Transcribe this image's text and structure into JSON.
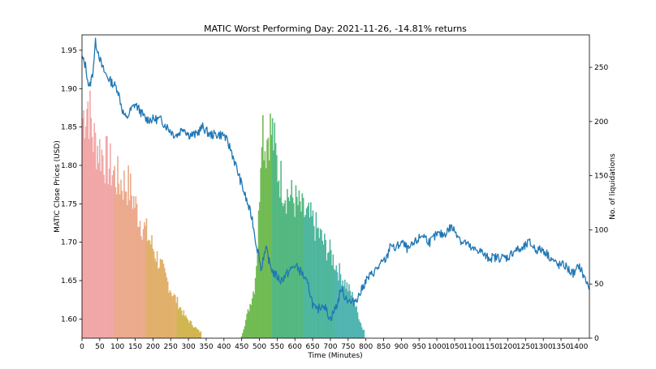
{
  "chart_data": {
    "type": "bar+line",
    "title": "MATIC Worst Performing Day: 2021-11-26, -14.81% returns",
    "xlabel": "Time (Minutes)",
    "ylabel_left": "MATIC Close Prices (USD)",
    "ylabel_right": "No. of liquidations",
    "xlim": [
      0,
      1430
    ],
    "ylim_left": [
      1.575,
      1.97
    ],
    "ylim_right": [
      0,
      280
    ],
    "x_ticks": [
      0,
      50,
      100,
      150,
      200,
      250,
      300,
      350,
      400,
      450,
      500,
      550,
      600,
      650,
      700,
      750,
      800,
      850,
      900,
      950,
      1000,
      1050,
      1100,
      1150,
      1200,
      1250,
      1300,
      1350,
      1400
    ],
    "y_left_ticks": [
      1.6,
      1.65,
      1.7,
      1.75,
      1.8,
      1.85,
      1.9,
      1.95
    ],
    "y_left_tick_labels": [
      "1.60",
      "1.65",
      "1.70",
      "1.75",
      "1.80",
      "1.85",
      "1.90",
      "1.95"
    ],
    "y_right_ticks": [
      0,
      50,
      100,
      150,
      200,
      250
    ],
    "price_series": {
      "name": "MATIC close price",
      "color": "#1f77b4",
      "x": [
        0,
        10,
        20,
        30,
        38,
        45,
        55,
        65,
        80,
        100,
        115,
        125,
        135,
        150,
        165,
        180,
        200,
        220,
        240,
        260,
        270,
        285,
        300,
        320,
        340,
        360,
        380,
        400,
        420,
        440,
        460,
        480,
        490,
        500,
        505,
        510,
        520,
        530,
        540,
        560,
        580,
        600,
        620,
        640,
        650,
        660,
        680,
        700,
        720,
        730,
        740,
        760,
        780,
        800,
        820,
        840,
        860,
        870,
        880,
        900,
        920,
        940,
        960,
        980,
        1000,
        1020,
        1040,
        1060,
        1070,
        1080,
        1100,
        1120,
        1140,
        1160,
        1180,
        1200,
        1220,
        1240,
        1260,
        1280,
        1300,
        1320,
        1340,
        1360,
        1380,
        1390,
        1400,
        1410,
        1420,
        1430
      ],
      "values": [
        1.94,
        1.93,
        1.9,
        1.92,
        1.96,
        1.95,
        1.93,
        1.92,
        1.91,
        1.9,
        1.87,
        1.86,
        1.87,
        1.88,
        1.87,
        1.86,
        1.86,
        1.86,
        1.85,
        1.84,
        1.84,
        1.85,
        1.84,
        1.84,
        1.85,
        1.84,
        1.84,
        1.84,
        1.82,
        1.79,
        1.76,
        1.73,
        1.7,
        1.68,
        1.66,
        1.68,
        1.69,
        1.67,
        1.66,
        1.65,
        1.66,
        1.67,
        1.66,
        1.64,
        1.62,
        1.61,
        1.62,
        1.6,
        1.62,
        1.64,
        1.63,
        1.62,
        1.63,
        1.65,
        1.66,
        1.67,
        1.68,
        1.7,
        1.69,
        1.7,
        1.69,
        1.7,
        1.71,
        1.7,
        1.71,
        1.71,
        1.72,
        1.71,
        1.7,
        1.7,
        1.69,
        1.69,
        1.68,
        1.68,
        1.68,
        1.68,
        1.69,
        1.69,
        1.7,
        1.69,
        1.69,
        1.68,
        1.67,
        1.67,
        1.66,
        1.66,
        1.67,
        1.66,
        1.65,
        1.64
      ]
    },
    "liquidation_bars": {
      "name": "No. of liquidations",
      "segments": [
        {
          "x_start": 0,
          "x_end": 335,
          "points": [
            [
              0,
              210
            ],
            [
              15,
              225
            ],
            [
              30,
              190
            ],
            [
              100,
              150
            ],
            [
              130,
              145
            ],
            [
              160,
              115
            ],
            [
              200,
              85
            ],
            [
              250,
              45
            ],
            [
              290,
              20
            ],
            [
              330,
              6
            ]
          ]
        },
        {
          "x_start": 448,
          "x_end": 795,
          "points": [
            [
              448,
              2
            ],
            [
              470,
              30
            ],
            [
              485,
              50
            ],
            [
              495,
              100
            ],
            [
              505,
              215
            ],
            [
              515,
              180
            ],
            [
              525,
              200
            ],
            [
              535,
              195
            ],
            [
              550,
              160
            ],
            [
              570,
              140
            ],
            [
              600,
              130
            ],
            [
              620,
              120
            ],
            [
              650,
              110
            ],
            [
              680,
              90
            ],
            [
              700,
              80
            ],
            [
              720,
              65
            ],
            [
              760,
              40
            ],
            [
              790,
              8
            ]
          ]
        }
      ],
      "colors": [
        "#f1a3a3",
        "#eba787",
        "#dfad64",
        "#cfb24a",
        "#a6b83e",
        "#6cb84c",
        "#4cb57a",
        "#48b39a",
        "#4ab1ad"
      ]
    }
  }
}
